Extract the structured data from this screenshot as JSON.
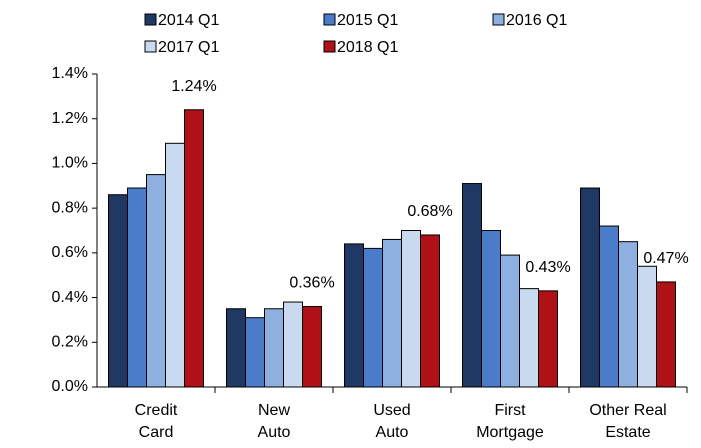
{
  "chart_data": {
    "type": "bar",
    "categories": [
      [
        "Credit",
        "Card"
      ],
      [
        "New",
        "Auto"
      ],
      [
        "Used",
        "Auto"
      ],
      [
        "First",
        "Mortgage"
      ],
      [
        "Other Real",
        "Estate"
      ]
    ],
    "series": [
      {
        "name": "2014 Q1",
        "color": "#1f3864",
        "values": [
          0.86,
          0.35,
          0.64,
          0.91,
          0.89
        ]
      },
      {
        "name": "2015 Q1",
        "color": "#4a7cc9",
        "values": [
          0.89,
          0.31,
          0.62,
          0.7,
          0.72
        ]
      },
      {
        "name": "2016 Q1",
        "color": "#8db0e0",
        "values": [
          0.95,
          0.35,
          0.66,
          0.59,
          0.65
        ]
      },
      {
        "name": "2017 Q1",
        "color": "#c9daf0",
        "values": [
          1.09,
          0.38,
          0.7,
          0.44,
          0.54
        ]
      },
      {
        "name": "2018 Q1",
        "color": "#b01116",
        "values": [
          1.24,
          0.36,
          0.68,
          0.43,
          0.47
        ],
        "value_labels": [
          "1.24%",
          "0.36%",
          "0.68%",
          "0.43%",
          "0.47%"
        ]
      }
    ],
    "ylim": [
      0,
      1.4
    ],
    "yticks": [
      {
        "value": 0,
        "label": "0.0%"
      },
      {
        "value": 0.2,
        "label": "0.2%"
      },
      {
        "value": 0.4,
        "label": "0.4%"
      },
      {
        "value": 0.6,
        "label": "0.6%"
      },
      {
        "value": 0.8,
        "label": "0.8%"
      },
      {
        "value": 1.0,
        "label": "1.0%"
      },
      {
        "value": 1.2,
        "label": "1.2%"
      },
      {
        "value": 1.4,
        "label": "1.4%"
      }
    ],
    "grid": false,
    "legend": "top"
  }
}
